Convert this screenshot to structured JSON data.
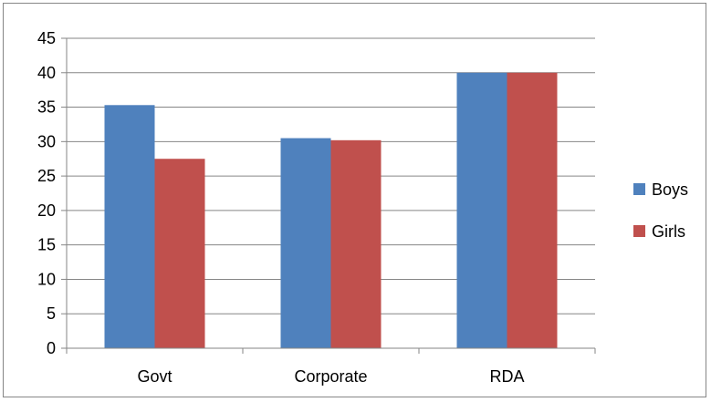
{
  "chart_data": {
    "type": "bar",
    "categories": [
      "Govt",
      "Corporate",
      "RDA"
    ],
    "series": [
      {
        "name": "Boys",
        "values": [
          35.3,
          30.5,
          40
        ],
        "color": "#4F81BD"
      },
      {
        "name": "Girls",
        "values": [
          27.5,
          30.2,
          40
        ],
        "color": "#C0504D"
      }
    ],
    "yticks": [
      "0",
      "5",
      "10",
      "15",
      "20",
      "25",
      "30",
      "35",
      "40",
      "45"
    ],
    "ylim": [
      0,
      45
    ],
    "grid": true,
    "legend_position": "right",
    "title": "",
    "xlabel": "",
    "ylabel": ""
  }
}
